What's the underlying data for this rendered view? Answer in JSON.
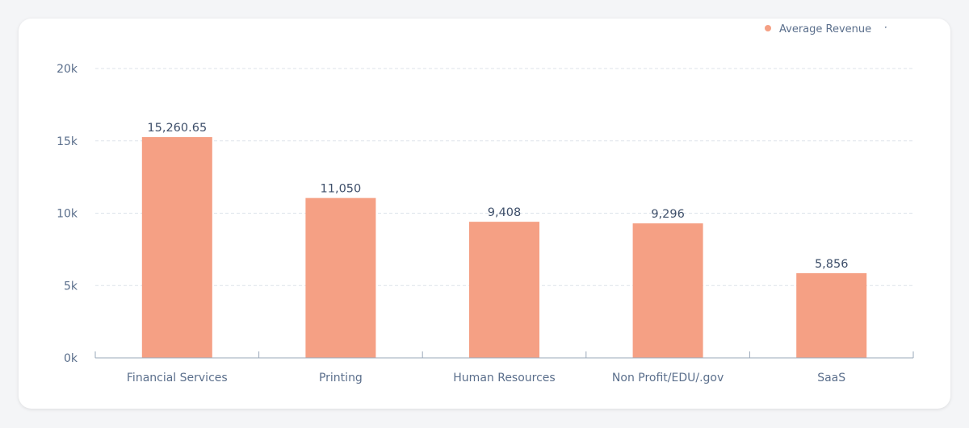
{
  "chart_data": {
    "type": "bar",
    "categories": [
      "Financial Services",
      "Printing",
      "Human Resources",
      "Non Profit/EDU/.gov",
      "SaaS"
    ],
    "series": [
      {
        "name": "Average Revenue",
        "values": [
          15260.65,
          11050,
          9408,
          9296,
          5856
        ],
        "labels": [
          "15,260.65",
          "11,050",
          "9,408",
          "9,296",
          "5,856"
        ],
        "color": "#f5a084"
      }
    ],
    "y_ticks": [
      {
        "value": 0,
        "label": "0k"
      },
      {
        "value": 5000,
        "label": "5k"
      },
      {
        "value": 10000,
        "label": "10k"
      },
      {
        "value": 15000,
        "label": "15k"
      },
      {
        "value": 20000,
        "label": "20k"
      }
    ],
    "ylim": [
      0,
      20000
    ],
    "grid": true,
    "legend": {
      "position": "top-right",
      "label": "Average Revenue",
      "extra_mark": "ˑ"
    },
    "colors": {
      "grid": "#dde3ea",
      "axis": "#9aa8ba"
    }
  }
}
